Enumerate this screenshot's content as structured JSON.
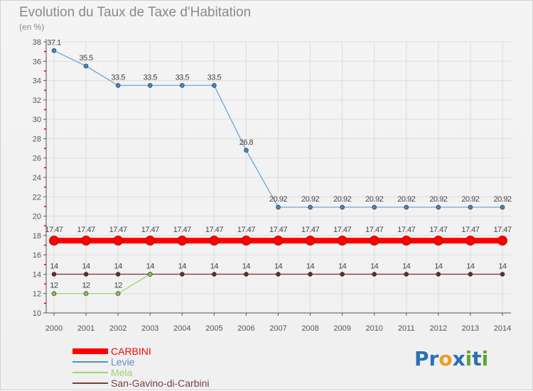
{
  "title": "Evolution du Taux de Taxe d'Habitation",
  "subtitle": "(en %)",
  "logo": {
    "text": "Proxiti",
    "letters": [
      "P",
      "r",
      "o",
      "x",
      "i",
      "t",
      "i"
    ]
  },
  "colors": {
    "grid": "#dedede",
    "axis": "#555555",
    "tick_red": "#e00000",
    "label": "#555555",
    "logo": [
      "#2a6fb5",
      "#2a6fb5",
      "#e8a020",
      "#2a6fb5",
      "#5aa830",
      "#2a6fb5",
      "#5aa830"
    ]
  },
  "chart_data": {
    "type": "line",
    "title": "Evolution du Taux de Taxe d'Habitation",
    "ylabel": "(en %)",
    "xlabel": "",
    "ylim": [
      10,
      38
    ],
    "yticks": [
      10,
      12,
      14,
      16,
      18,
      20,
      22,
      24,
      26,
      28,
      30,
      32,
      34,
      36,
      38
    ],
    "categories": [
      "2000",
      "2001",
      "2002",
      "2003",
      "2004",
      "2005",
      "2006",
      "2007",
      "2008",
      "2009",
      "2010",
      "2011",
      "2012",
      "2013",
      "2014"
    ],
    "legend_position": "bottom-left",
    "series": [
      {
        "name": "CARBINI",
        "color": "#ff0000",
        "line_color": "#ff0000",
        "marker_color": "#ff0000",
        "thick": true,
        "values": [
          17.47,
          17.47,
          17.47,
          17.47,
          17.47,
          17.47,
          17.47,
          17.47,
          17.47,
          17.47,
          17.47,
          17.47,
          17.47,
          17.47,
          17.47
        ],
        "labels": [
          "17.47",
          "17.47",
          "17.47",
          "17.47",
          "17.47",
          "17.47",
          "17.47",
          "17.47",
          "17.47",
          "17.47",
          "17.47",
          "17.47",
          "17.47",
          "17.47",
          "17.47"
        ]
      },
      {
        "name": "Levie",
        "color": "#4f93c9",
        "line_color": "#6fa6d6",
        "marker_color": "#3f86c3",
        "thick": false,
        "values": [
          37.1,
          35.5,
          33.5,
          33.5,
          33.5,
          33.5,
          26.8,
          20.92,
          20.92,
          20.92,
          20.92,
          20.92,
          20.92,
          20.92,
          20.92
        ],
        "labels": [
          "37.1",
          "35.5",
          "33.5",
          "33.5",
          "33.5",
          "33.5",
          "26.8",
          "20.92",
          "20.92",
          "20.92",
          "20.92",
          "20.92",
          "20.92",
          "20.92",
          "20.92"
        ]
      },
      {
        "name": "Mela",
        "color": "#a4d36f",
        "line_color": "#a4d36f",
        "marker_color": "#7cc444",
        "thick": false,
        "values": [
          12,
          12,
          12,
          14,
          null,
          null,
          null,
          null,
          null,
          null,
          null,
          null,
          null,
          null,
          null
        ],
        "labels": [
          "12",
          "12",
          "12",
          null,
          null,
          null,
          null,
          null,
          null,
          null,
          null,
          null,
          null,
          null,
          null
        ]
      },
      {
        "name": "San-Gavino-di-Carbini",
        "color": "#7a3f3f",
        "line_color": "#7a3f3f",
        "marker_color": "#6a2a2a",
        "thick": false,
        "values": [
          14,
          14,
          14,
          14,
          14,
          14,
          14,
          14,
          14,
          14,
          14,
          14,
          14,
          14,
          14
        ],
        "labels": [
          "14",
          "14",
          "14",
          "14",
          "14",
          "14",
          "14",
          "14",
          "14",
          "14",
          "14",
          "14",
          "14",
          "14",
          "14"
        ]
      }
    ]
  }
}
